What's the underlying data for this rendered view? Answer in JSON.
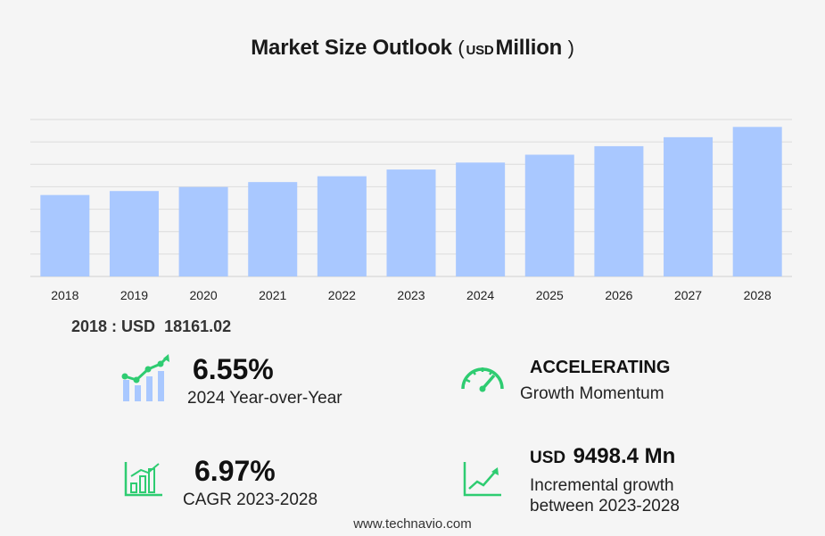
{
  "title": {
    "main": "Market Size Outlook",
    "open_paren": "(",
    "unit": "USD",
    "scale": "Million",
    "close_paren": ")"
  },
  "base_value": {
    "year": "2018",
    "separator": " : ",
    "currency": "USD",
    "amount": "18161.02"
  },
  "stats": {
    "yoy": {
      "value": "6.55%",
      "label": "2024 Year-over-Year",
      "icon": "growth-chart-icon"
    },
    "momentum": {
      "value": "ACCELERATING",
      "label": "Growth Momentum",
      "icon": "speedometer-icon"
    },
    "cagr": {
      "value": "6.97%",
      "label": "CAGR 2023-2028",
      "icon": "bar-chart-icon"
    },
    "incremental": {
      "currency": "USD",
      "value": "9498.4 Mn",
      "label_line1": "Incremental growth",
      "label_line2": "between 2023-2028",
      "icon": "line-chart-icon"
    }
  },
  "footer": "www.technavio.com",
  "colors": {
    "bar": "#a9c8ff",
    "icon_green": "#2ecc71",
    "icon_blue": "#a9c8ff",
    "grid": "#dcdcdc"
  },
  "chart_data": {
    "type": "bar",
    "categories": [
      "2018",
      "2019",
      "2020",
      "2021",
      "2022",
      "2023",
      "2024",
      "2025",
      "2026",
      "2027",
      "2028"
    ],
    "values": [
      18161.02,
      19050,
      19950,
      21050,
      22350,
      23850,
      25400,
      27150,
      29050,
      31050,
      33350
    ],
    "ylim": [
      0,
      35000
    ],
    "grid": true,
    "gridlines": 7
  }
}
